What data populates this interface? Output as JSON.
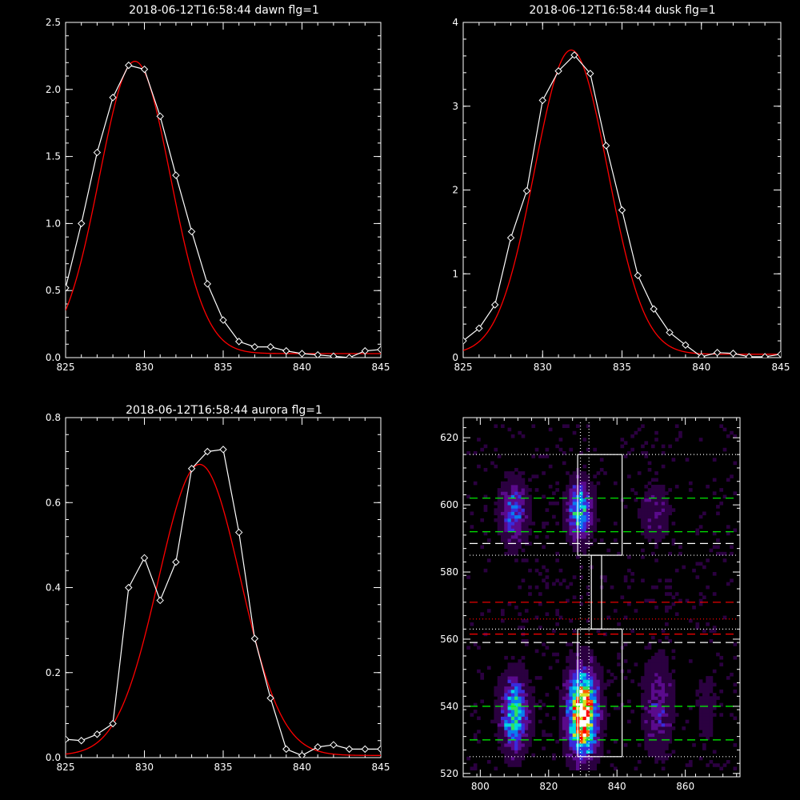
{
  "chart_data": [
    {
      "type": "line",
      "title": "2018-06-12T16:58:44 dawn flg=1",
      "xlim": [
        825,
        845
      ],
      "ylim": [
        0,
        2.5
      ],
      "xticks": [
        "825",
        "830",
        "835",
        "840",
        "845"
      ],
      "yticks": [
        "0.0",
        "0.5",
        "1.0",
        "1.5",
        "2.0",
        "2.5"
      ],
      "series": [
        {
          "role": "data",
          "color": "#ffffff",
          "marker": "diamond",
          "x": [
            825,
            826,
            827,
            828,
            829,
            830,
            831,
            832,
            833,
            834,
            835,
            836,
            837,
            838,
            839,
            840,
            841,
            842,
            843,
            844,
            845
          ],
          "y": [
            0.52,
            1.0,
            1.53,
            1.94,
            2.18,
            2.15,
            1.8,
            1.36,
            0.94,
            0.55,
            0.28,
            0.12,
            0.08,
            0.08,
            0.05,
            0.03,
            0.02,
            0.01,
            0.0,
            0.05,
            0.06
          ]
        },
        {
          "role": "fit",
          "color": "#ff0000",
          "fit": {
            "amp": 2.18,
            "center": 829.4,
            "sigma": 2.25,
            "offset": 0.03
          }
        }
      ]
    },
    {
      "type": "line",
      "title": "2018-06-12T16:58:44 dusk flg=1",
      "xlim": [
        825,
        845
      ],
      "ylim": [
        0,
        4
      ],
      "xticks": [
        "825",
        "830",
        "835",
        "840",
        "845"
      ],
      "yticks": [
        "0",
        "1",
        "2",
        "3",
        "4"
      ],
      "series": [
        {
          "role": "data",
          "color": "#ffffff",
          "marker": "diamond",
          "x": [
            825,
            826,
            827,
            828,
            829,
            830,
            831,
            832,
            833,
            834,
            835,
            836,
            837,
            838,
            839,
            840,
            841,
            842,
            843,
            844,
            845
          ],
          "y": [
            0.2,
            0.35,
            0.63,
            1.43,
            1.99,
            3.07,
            3.42,
            3.61,
            3.39,
            2.53,
            1.76,
            0.98,
            0.58,
            0.3,
            0.15,
            0.01,
            0.06,
            0.05,
            0.01,
            0.01,
            0.04
          ]
        },
        {
          "role": "fit",
          "color": "#ff0000",
          "fit": {
            "amp": 3.63,
            "center": 831.8,
            "sigma": 2.3,
            "offset": 0.04
          }
        }
      ]
    },
    {
      "type": "line",
      "title": "2018-06-12T16:58:44 aurora flg=1",
      "xlim": [
        825,
        845
      ],
      "ylim": [
        0,
        0.8
      ],
      "xticks": [
        "825",
        "830",
        "835",
        "840",
        "845"
      ],
      "yticks": [
        "0.0",
        "0.2",
        "0.4",
        "0.6",
        "0.8"
      ],
      "series": [
        {
          "role": "data",
          "color": "#ffffff",
          "marker": "diamond",
          "x": [
            825,
            826,
            827,
            828,
            829,
            830,
            831,
            832,
            833,
            834,
            835,
            836,
            837,
            838,
            839,
            840,
            841,
            842,
            843,
            844,
            845
          ],
          "y": [
            0.043,
            0.04,
            0.055,
            0.08,
            0.4,
            0.47,
            0.37,
            0.46,
            0.68,
            0.72,
            0.725,
            0.53,
            0.28,
            0.14,
            0.02,
            0.005,
            0.025,
            0.03,
            0.02,
            0.02,
            0.02
          ]
        },
        {
          "role": "fit",
          "color": "#ff0000",
          "fit": {
            "amp": 0.685,
            "center": 833.5,
            "sigma": 2.6,
            "offset": 0.005
          }
        }
      ]
    },
    {
      "type": "heatmap",
      "title": "",
      "xlim": [
        795,
        876
      ],
      "ylim": [
        519,
        626
      ],
      "xticks": [
        "800",
        "820",
        "840",
        "860"
      ],
      "yticks": [
        "520",
        "540",
        "560",
        "580",
        "600",
        "620"
      ],
      "colormap": [
        "#000000",
        "#2b0040",
        "#5a0a8c",
        "#3a2bdc",
        "#0a7cf0",
        "#00d8e0",
        "#30e060",
        "#d8e020",
        "#ff6000",
        "#ff0000",
        "#ffffff"
      ],
      "blobs": [
        {
          "x": 810,
          "y": 538,
          "sx": 2.6,
          "sy": 7,
          "amp": 0.55
        },
        {
          "x": 810,
          "y": 598,
          "sx": 2.6,
          "sy": 6,
          "amp": 0.32
        },
        {
          "x": 830,
          "y": 538,
          "sx": 2.8,
          "sy": 8,
          "amp": 1.0
        },
        {
          "x": 829,
          "y": 598,
          "sx": 2.4,
          "sy": 5.5,
          "amp": 0.5
        },
        {
          "x": 852,
          "y": 540,
          "sx": 2.8,
          "sy": 9,
          "amp": 0.22
        },
        {
          "x": 851,
          "y": 598,
          "sx": 2.8,
          "sy": 6,
          "amp": 0.14
        },
        {
          "x": 866,
          "y": 540,
          "sx": 2.2,
          "sy": 8,
          "amp": 0.08
        }
      ],
      "overlays": {
        "boxes": [
          {
            "x0": 828.5,
            "x1": 841.5,
            "y0": 525,
            "y1": 563,
            "color": "#ffffff"
          },
          {
            "x0": 832.5,
            "x1": 835.5,
            "y0": 563,
            "y1": 585,
            "color": "#ffffff"
          },
          {
            "x0": 828.5,
            "x1": 841.5,
            "y0": 585,
            "y1": 615,
            "color": "#ffffff"
          }
        ],
        "hlines": [
          {
            "y": 615,
            "color": "#ffffff",
            "style": "dotted"
          },
          {
            "y": 602,
            "color": "#00ff00",
            "style": "dashed"
          },
          {
            "y": 592,
            "color": "#00ff00",
            "style": "dashed"
          },
          {
            "y": 588.5,
            "color": "#ffffff",
            "style": "dashed"
          },
          {
            "y": 585,
            "color": "#ffffff",
            "style": "dotted"
          },
          {
            "y": 571,
            "color": "#ff0000",
            "style": "dashed"
          },
          {
            "y": 566,
            "color": "#ff0000",
            "style": "dotted"
          },
          {
            "y": 563,
            "color": "#ffffff",
            "style": "dotted"
          },
          {
            "y": 561.5,
            "color": "#ff0000",
            "style": "dashed"
          },
          {
            "y": 559,
            "color": "#ffffff",
            "style": "dashed"
          },
          {
            "y": 540,
            "color": "#00ff00",
            "style": "dashed"
          },
          {
            "y": 530,
            "color": "#00ff00",
            "style": "dashed"
          },
          {
            "y": 525,
            "color": "#ffffff",
            "style": "dotted"
          }
        ],
        "vlines": [
          {
            "x": 829.3,
            "color": "#ffffff",
            "style": "dotted"
          },
          {
            "x": 831.8,
            "color": "#ffffff",
            "style": "dotted"
          }
        ]
      }
    }
  ]
}
